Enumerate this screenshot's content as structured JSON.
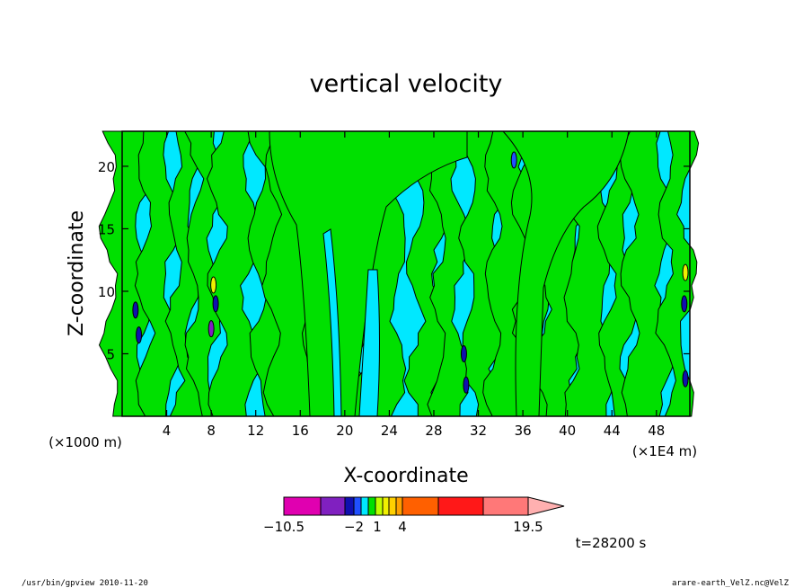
{
  "chart_data": {
    "type": "heatmap",
    "title": "vertical velocity",
    "xlabel": "X-coordinate",
    "ylabel": "Z-coordinate",
    "x_unit_left": "(×1000 m)",
    "x_unit_right": "(×1E4 m)",
    "xlim": [
      0,
      51
    ],
    "ylim": [
      0,
      22.8
    ],
    "x_ticks": [
      4,
      8,
      12,
      16,
      20,
      24,
      28,
      32,
      36,
      40,
      44,
      48
    ],
    "y_ticks": [
      5,
      10,
      15,
      20
    ],
    "colorbar": {
      "levels": [
        -10.5,
        -7.5,
        -4.5,
        -3,
        -2,
        -1,
        0,
        1,
        2,
        3,
        4,
        7.5,
        11.5,
        15.5,
        19.5
      ],
      "colors": [
        "#e000b0",
        "#8020c0",
        "#1010b0",
        "#2050ff",
        "#00e8ff",
        "#00e000",
        "#c0ff00",
        "#f0f000",
        "#ffd000",
        "#ffa000",
        "#ff6000",
        "#ff1818",
        "#ff7878",
        "#ffb0b0"
      ],
      "tick_labels": [
        "−10.5",
        "−2",
        "1",
        "4",
        "19.5"
      ],
      "tick_values": [
        -10.5,
        -2,
        1,
        4,
        19.5
      ]
    },
    "time_label": "t=28200 s",
    "grid": false
  },
  "footer": {
    "left": "/usr/bin/gpview   2010-11-20",
    "right": "arare-earth_VelZ.nc@VelZ"
  }
}
